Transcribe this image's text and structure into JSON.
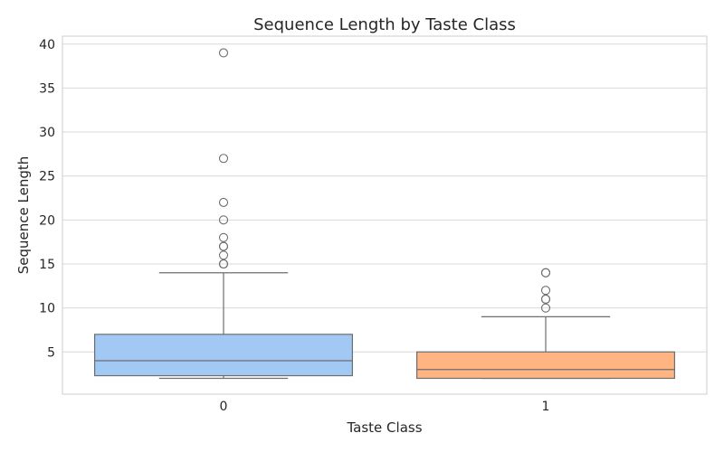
{
  "chart_data": {
    "type": "box",
    "title": "Sequence Length by Taste Class",
    "xlabel": "Taste Class",
    "ylabel": "Sequence Length",
    "categories": [
      "0",
      "1"
    ],
    "ylim": [
      0.2,
      40.9
    ],
    "yticks": [
      5,
      10,
      15,
      20,
      25,
      30,
      35,
      40
    ],
    "grid": true,
    "boxes": [
      {
        "category": "0",
        "whisker_low": 2,
        "q1": 2.3,
        "median": 4,
        "q3": 7,
        "whisker_high": 14,
        "outliers": [
          15,
          15,
          16,
          17,
          17,
          18,
          20,
          22,
          27,
          39
        ],
        "color": "#a1c9f4"
      },
      {
        "category": "1",
        "whisker_low": 2,
        "q1": 2,
        "median": 3,
        "q3": 5,
        "whisker_high": 9,
        "outliers": [
          10,
          11,
          11,
          12,
          14,
          14
        ],
        "color": "#ffb482"
      }
    ]
  }
}
